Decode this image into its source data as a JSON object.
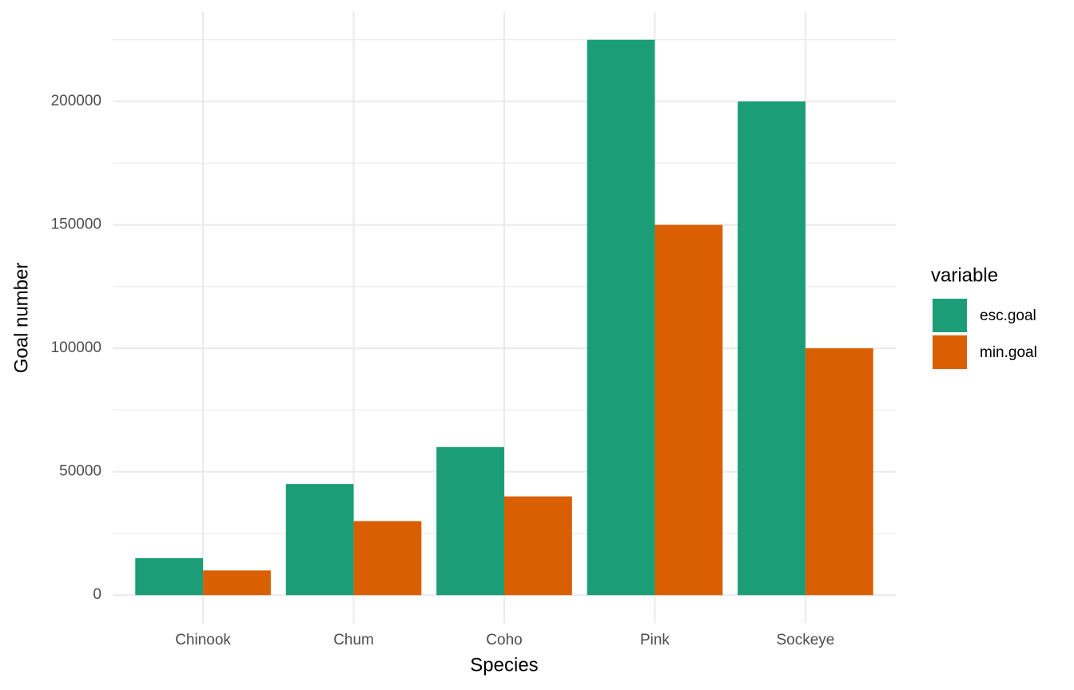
{
  "chart_data": {
    "type": "bar",
    "x_label": "Species",
    "y_label": "Goal number",
    "legend_title": "variable",
    "legend_position": "right",
    "categories": [
      "Chinook",
      "Chum",
      "Coho",
      "Pink",
      "Sockeye"
    ],
    "series": [
      {
        "name": "esc.goal",
        "color": "#1b9e77",
        "values": [
          15000,
          45000,
          60000,
          225000,
          200000
        ]
      },
      {
        "name": "min.goal",
        "color": "#d95f02",
        "values": [
          10000,
          30000,
          40000,
          150000,
          100000
        ]
      }
    ],
    "ylim": [
      -11250,
      236250
    ],
    "yticks": [
      0,
      50000,
      100000,
      150000,
      200000
    ],
    "yticks_minor": [
      25000,
      75000,
      125000,
      175000,
      225000
    ],
    "grid": true
  }
}
